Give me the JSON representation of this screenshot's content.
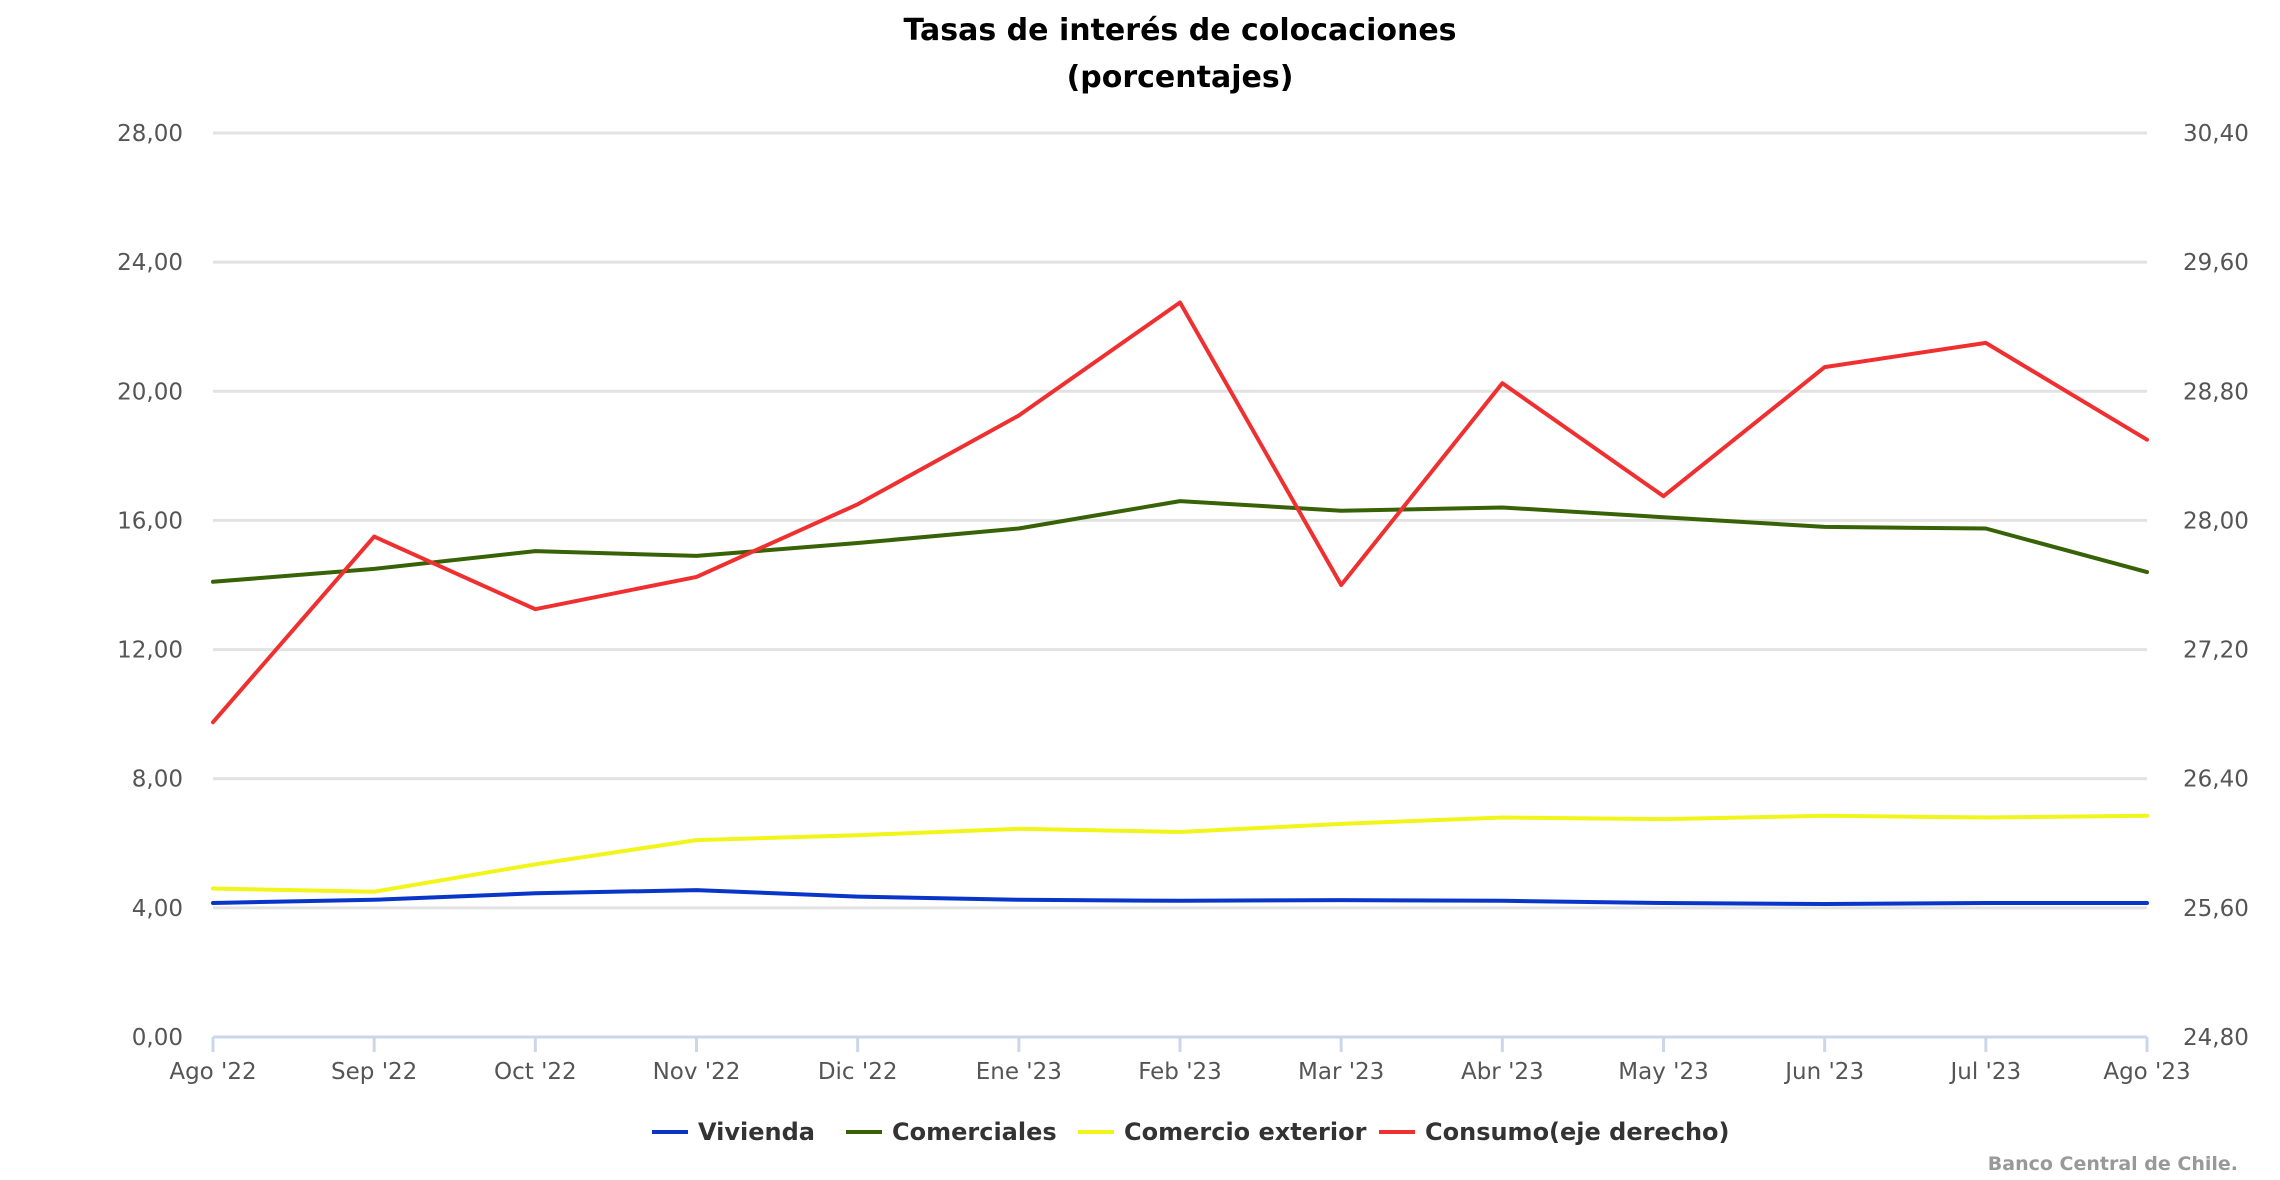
{
  "chart_data": {
    "type": "line",
    "title": "Tasas de interés de colocaciones",
    "subtitle": "(porcentajes)",
    "categories": [
      "Ago '22",
      "Sep '22",
      "Oct '22",
      "Nov '22",
      "Dic '22",
      "Ene '23",
      "Feb '23",
      "Mar '23",
      "Abr '23",
      "May '23",
      "Jun '23",
      "Jul '23",
      "Ago '23"
    ],
    "y_left": {
      "min": 0,
      "max": 28,
      "ticks": [
        "0,00",
        "4,00",
        "8,00",
        "12,00",
        "16,00",
        "20,00",
        "24,00",
        "28,00"
      ]
    },
    "y_right": {
      "min": 24.8,
      "max": 30.4,
      "ticks": [
        "24,80",
        "25,60",
        "26,40",
        "27,20",
        "28,00",
        "28,80",
        "29,60",
        "30,40"
      ]
    },
    "grid": true,
    "legend_position": "bottom",
    "series": [
      {
        "name": "Vivienda",
        "color": "#0a35c9",
        "axis": "left",
        "values": [
          4.15,
          4.25,
          4.45,
          4.55,
          4.35,
          4.25,
          4.22,
          4.24,
          4.22,
          4.15,
          4.12,
          4.15,
          4.15
        ]
      },
      {
        "name": "Comerciales",
        "color": "#376206",
        "axis": "left",
        "values": [
          14.1,
          14.5,
          15.05,
          14.9,
          15.3,
          15.75,
          16.6,
          16.3,
          16.4,
          16.1,
          15.8,
          15.75,
          14.4
        ]
      },
      {
        "name": "Comercio exterior",
        "color": "#f1f51a",
        "axis": "left",
        "values": [
          4.6,
          4.5,
          5.35,
          6.1,
          6.25,
          6.45,
          6.35,
          6.6,
          6.8,
          6.75,
          6.85,
          6.8,
          6.85
        ]
      },
      {
        "name": "Consumo(eje derecho)",
        "color": "#f03030",
        "axis": "right",
        "values": [
          26.75,
          27.9,
          27.45,
          27.65,
          28.1,
          28.65,
          29.35,
          27.6,
          28.85,
          28.15,
          28.95,
          29.1,
          28.5
        ]
      }
    ],
    "credit": "Banco Central de Chile."
  }
}
